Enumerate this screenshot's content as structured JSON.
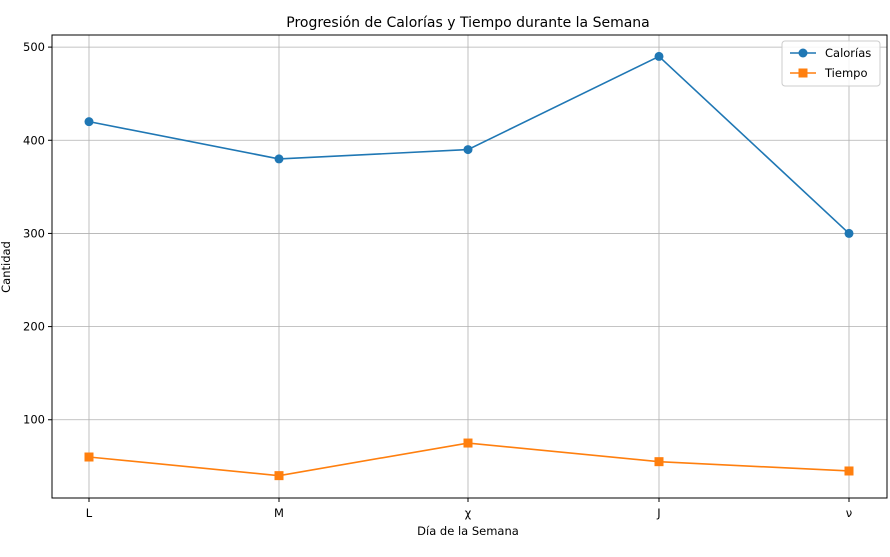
{
  "chart_data": {
    "type": "line",
    "title": "Progresión de Calorías y Tiempo durante la Semana",
    "xlabel": "Día de la Semana",
    "ylabel": "Cantidad",
    "categories": [
      "L",
      "M",
      "χ",
      "J",
      "ν"
    ],
    "yticks": [
      100,
      200,
      300,
      400,
      500
    ],
    "ylim": [
      16,
      513
    ],
    "grid": true,
    "legend_position": "top-right",
    "series": [
      {
        "name": "Calorías",
        "values": [
          420,
          380,
          390,
          490,
          300
        ],
        "color": "#1f77b4",
        "marker": "circle"
      },
      {
        "name": "Tiempo",
        "values": [
          60,
          40,
          75,
          55,
          45
        ],
        "color": "#ff7f0e",
        "marker": "square"
      }
    ]
  }
}
